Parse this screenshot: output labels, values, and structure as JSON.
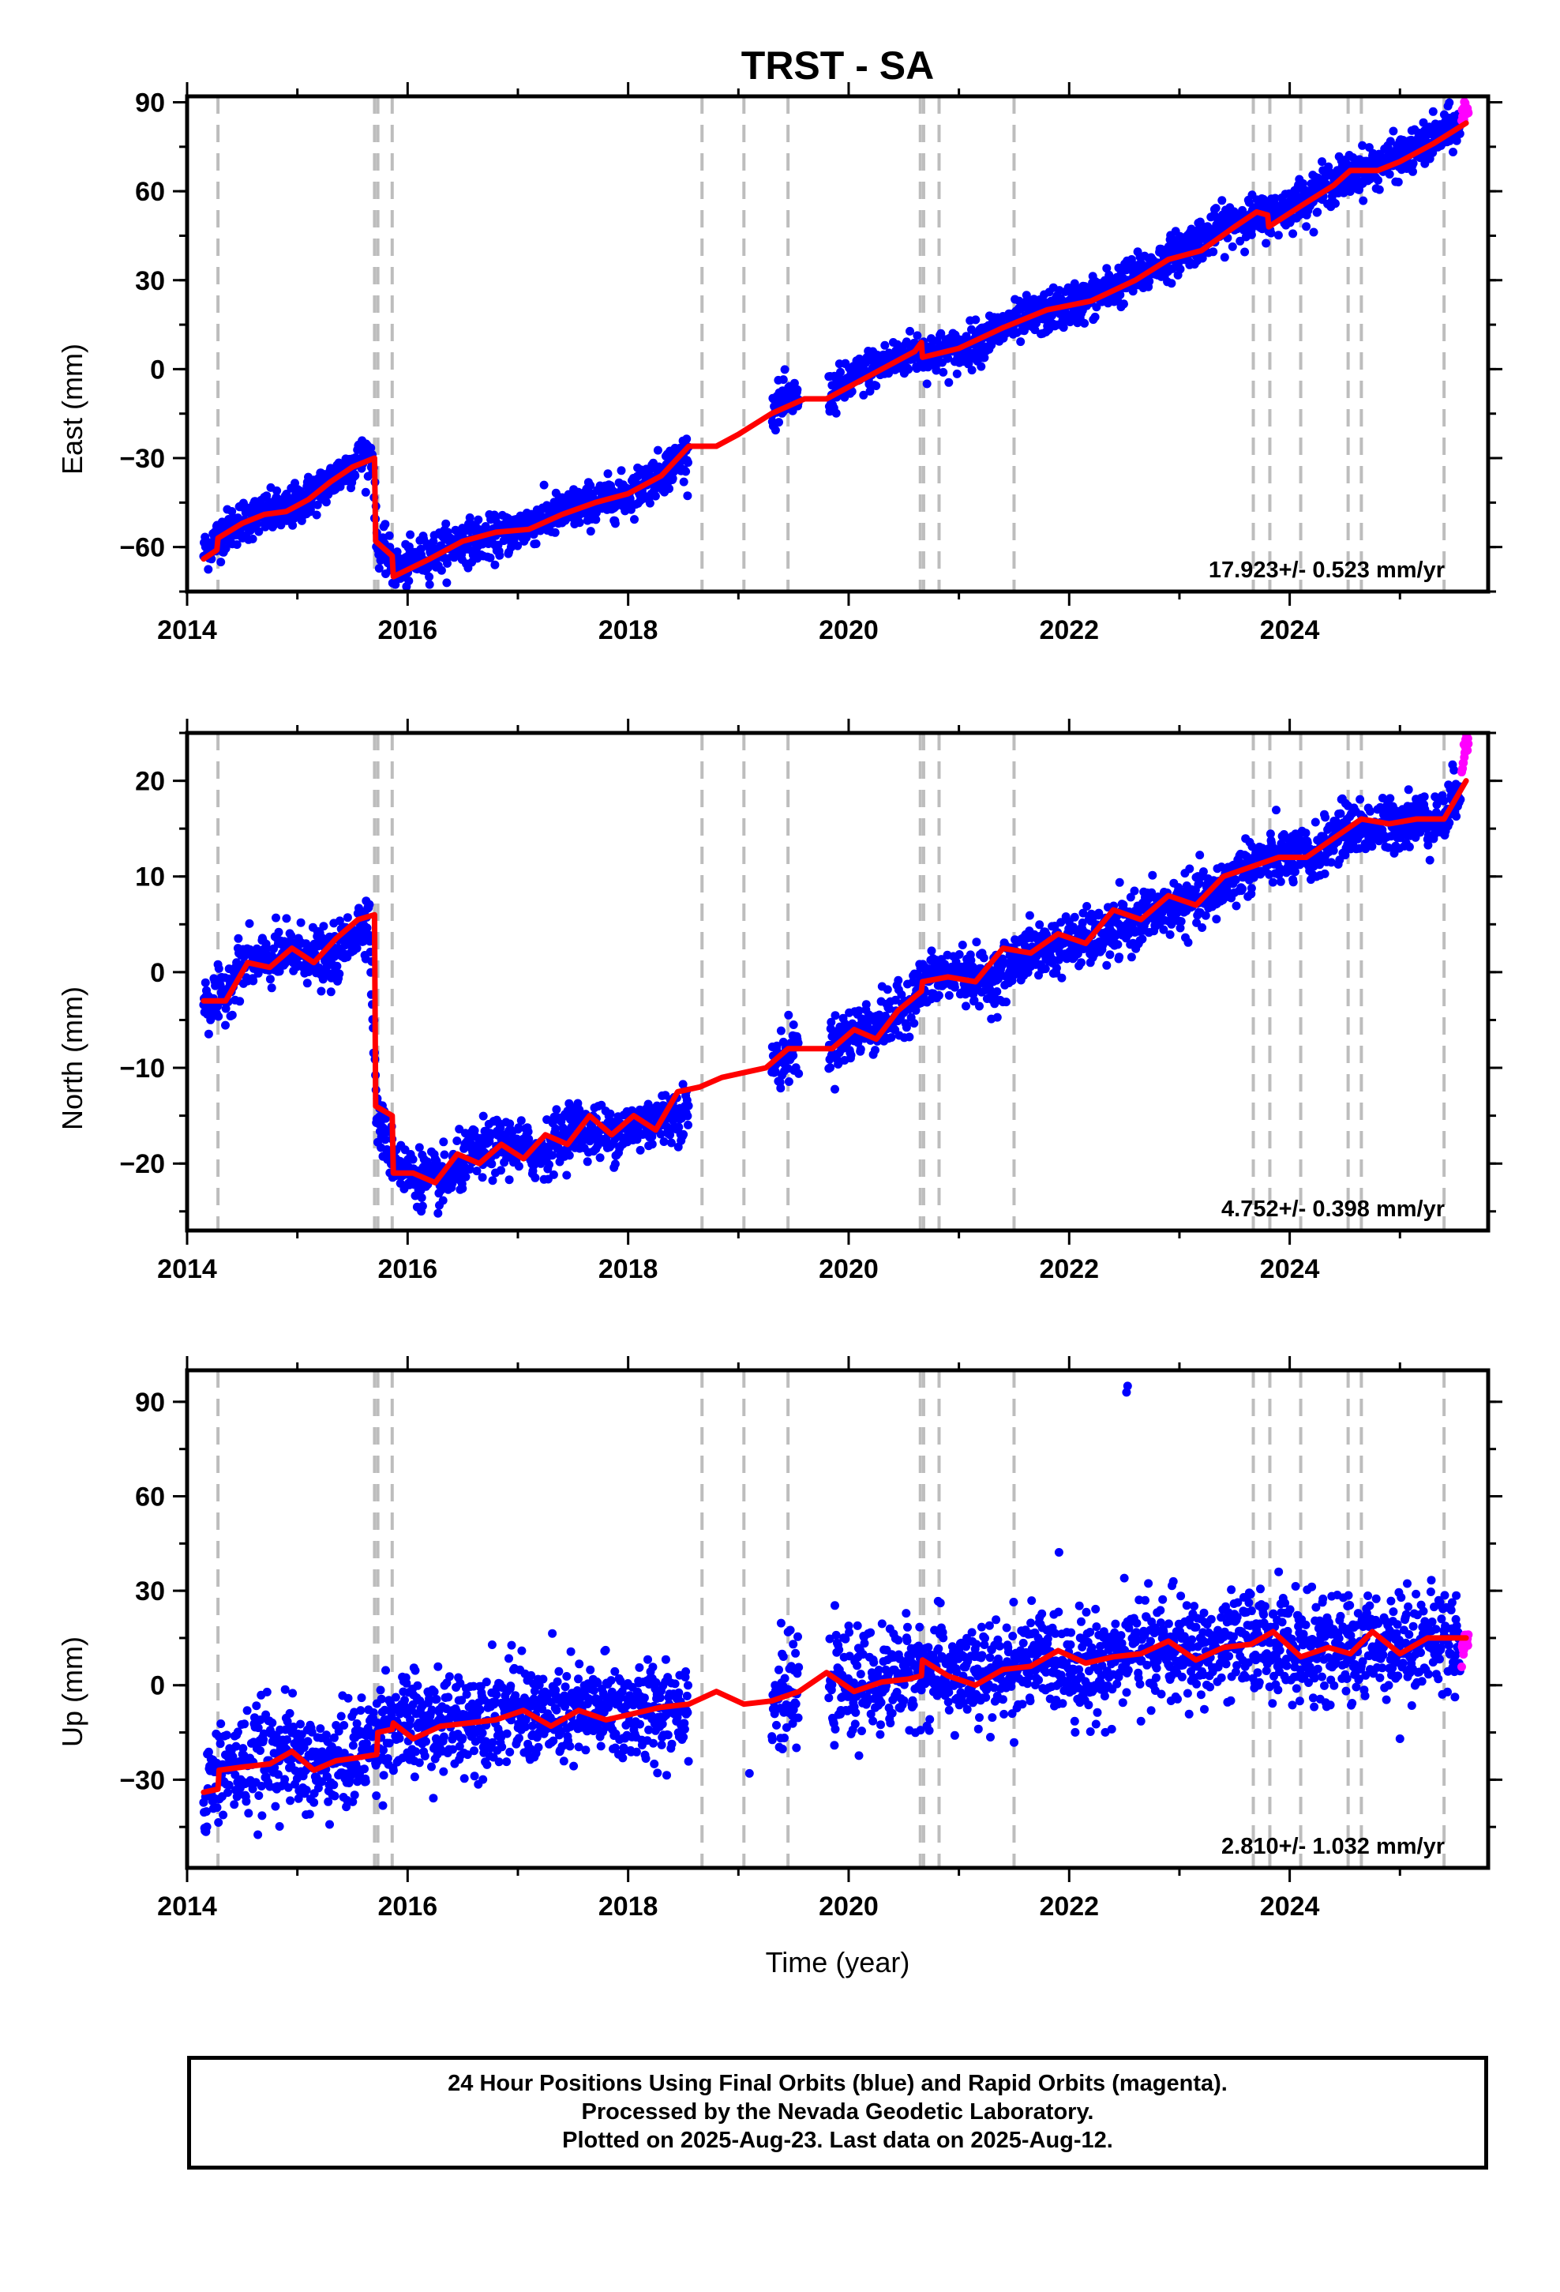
{
  "chart_data": [
    {
      "type": "scatter",
      "title": "TRST - SA",
      "ylabel": "East (mm)",
      "xlabel": "",
      "xlim": [
        2014.0,
        2025.8
      ],
      "ylim": [
        -75,
        92
      ],
      "xticks": [
        2014,
        2016,
        2018,
        2020,
        2022,
        2024
      ],
      "yticks": [
        -60,
        -30,
        0,
        30,
        60,
        90
      ],
      "ytick_labels": [
        "−60",
        "−30",
        "0",
        "30",
        "60",
        "90"
      ],
      "rate": "17.923+/- 0.523 mm/yr",
      "grid": false,
      "series": [
        {
          "color": "#0000ff",
          "marker": "dot",
          "x": [
            2014.15,
            2014.3,
            2014.5,
            2014.7,
            2014.9,
            2015.1,
            2015.3,
            2015.5,
            2015.68,
            2015.72,
            2015.8,
            2015.9,
            2016.1,
            2016.5,
            2016.8,
            2017.2,
            2017.6,
            2018.0,
            2018.3,
            2018.6,
            2019.3,
            2019.5,
            2019.8,
            2020.2,
            2020.6,
            2020.7,
            2021.0,
            2021.4,
            2021.8,
            2022.2,
            2022.7,
            2023.1,
            2023.5,
            2023.85,
            2024.1,
            2024.5,
            2024.9,
            2025.2,
            2025.5
          ],
          "y": [
            -62,
            -56,
            -51,
            -49,
            -48,
            -43,
            -38,
            -32,
            -28,
            -58,
            -62,
            -68,
            -64,
            -58,
            -57,
            -51,
            -46,
            -42,
            -35,
            -27,
            -13,
            -10,
            -9,
            0,
            6,
            5,
            6,
            14,
            19,
            24,
            33,
            42,
            50,
            52,
            57,
            65,
            70,
            75,
            82
          ],
          "scatter": 3.5
        },
        {
          "color": "#ff00ff",
          "marker": "dot",
          "x": [
            2025.56,
            2025.58,
            2025.6
          ],
          "y": [
            85,
            86.5,
            88
          ],
          "scatter": 2
        }
      ],
      "model": {
        "color": "#ff0000",
        "x": [
          2014.15,
          2014.27,
          2014.28,
          2014.5,
          2014.7,
          2014.9,
          2015.1,
          2015.3,
          2015.5,
          2015.7,
          2015.71,
          2015.86,
          2015.87,
          2016.2,
          2016.5,
          2016.8,
          2017.1,
          2017.4,
          2017.7,
          2018.0,
          2018.3,
          2018.55,
          2018.8,
          2019.0,
          2019.3,
          2019.6,
          2019.8,
          2020.2,
          2020.6,
          2020.66,
          2020.67,
          2021.0,
          2021.4,
          2021.8,
          2022.2,
          2022.6,
          2022.9,
          2023.2,
          2023.5,
          2023.7,
          2023.8,
          2023.81,
          2024.1,
          2024.4,
          2024.55,
          2024.8,
          2025.0,
          2025.3,
          2025.6
        ],
        "y": [
          -64,
          -61,
          -57,
          -52,
          -49,
          -48,
          -44,
          -38,
          -33,
          -30,
          -58,
          -63,
          -70,
          -64,
          -58,
          -55,
          -54,
          -49,
          -45,
          -42,
          -36,
          -26,
          -26,
          -22,
          -15,
          -10,
          -10,
          -2,
          6,
          9,
          4,
          7,
          14,
          20,
          23,
          30,
          37,
          40,
          48,
          53,
          52,
          48,
          55,
          62,
          67,
          67,
          70,
          76,
          83
        ]
      }
    },
    {
      "type": "scatter",
      "ylabel": "North (mm)",
      "xlabel": "",
      "xlim": [
        2014.0,
        2025.8
      ],
      "ylim": [
        -27,
        25
      ],
      "xticks": [
        2014,
        2016,
        2018,
        2020,
        2022,
        2024
      ],
      "yticks": [
        -20,
        -10,
        0,
        10,
        20
      ],
      "ytick_labels": [
        "−20",
        "−10",
        "0",
        "10",
        "20"
      ],
      "rate": "4.752+/- 0.398 mm/yr",
      "grid": false,
      "series": [
        {
          "color": "#0000ff",
          "marker": "dot",
          "x": [
            2014.15,
            2014.3,
            2014.5,
            2014.7,
            2014.9,
            2015.1,
            2015.3,
            2015.5,
            2015.65,
            2015.72,
            2015.85,
            2016.0,
            2016.3,
            2016.6,
            2016.9,
            2017.2,
            2017.5,
            2017.8,
            2018.1,
            2018.4,
            2019.3,
            2019.5,
            2019.8,
            2020.1,
            2020.4,
            2020.7,
            2021.0,
            2021.3,
            2021.6,
            2022.0,
            2022.4,
            2022.7,
            2023.0,
            2023.3,
            2023.6,
            2023.9,
            2024.2,
            2024.5,
            2024.8,
            2025.1,
            2025.4,
            2025.55
          ],
          "y": [
            -3,
            -3,
            1,
            1,
            2,
            2,
            1,
            4,
            6,
            -15,
            -19,
            -21,
            -22,
            -19,
            -18,
            -19,
            -16,
            -17,
            -16,
            -15,
            -10,
            -8,
            -8,
            -6,
            -5,
            -1,
            0,
            -1,
            2,
            3,
            4,
            6,
            7,
            8,
            11,
            12,
            12,
            15,
            15,
            16,
            16,
            20
          ],
          "scatter": 1.4
        },
        {
          "color": "#ff00ff",
          "marker": "dot",
          "x": [
            2025.56,
            2025.58,
            2025.6
          ],
          "y": [
            21,
            22.5,
            24
          ],
          "scatter": 0.6
        }
      ],
      "model": {
        "color": "#ff0000",
        "x": [
          2014.15,
          2014.35,
          2014.55,
          2014.75,
          2014.95,
          2015.15,
          2015.35,
          2015.55,
          2015.7,
          2015.71,
          2015.86,
          2015.87,
          2016.05,
          2016.25,
          2016.45,
          2016.65,
          2016.85,
          2017.05,
          2017.25,
          2017.45,
          2017.65,
          2017.85,
          2018.05,
          2018.25,
          2018.45,
          2018.65,
          2018.85,
          2019.05,
          2019.25,
          2019.45,
          2019.65,
          2019.85,
          2020.05,
          2020.25,
          2020.45,
          2020.66,
          2020.67,
          2020.9,
          2021.15,
          2021.4,
          2021.65,
          2021.9,
          2022.15,
          2022.4,
          2022.65,
          2022.9,
          2023.15,
          2023.4,
          2023.65,
          2023.9,
          2024.15,
          2024.4,
          2024.65,
          2024.9,
          2025.15,
          2025.4,
          2025.6
        ],
        "y": [
          -3,
          -3,
          1,
          0.5,
          2.5,
          1,
          3.5,
          5.5,
          6,
          -14,
          -15,
          -21,
          -21,
          -22,
          -19,
          -20,
          -18,
          -19.5,
          -17,
          -18,
          -15,
          -17,
          -15,
          -16.5,
          -12.5,
          -12,
          -11,
          -10.5,
          -10,
          -8,
          -8,
          -8,
          -6,
          -7,
          -4,
          -2,
          -1,
          -0.5,
          -1,
          2.5,
          2,
          4,
          3,
          6.5,
          5.5,
          8,
          7,
          10,
          11,
          12,
          12,
          14,
          16,
          15.5,
          16,
          16,
          20
        ]
      }
    },
    {
      "type": "scatter",
      "ylabel": "Up (mm)",
      "xlabel": "Time (year)",
      "xlim": [
        2014.0,
        2025.8
      ],
      "ylim": [
        -58,
        100
      ],
      "xticks": [
        2014,
        2016,
        2018,
        2020,
        2022,
        2024
      ],
      "yticks": [
        -30,
        0,
        30,
        60,
        90
      ],
      "ytick_labels": [
        "−30",
        "0",
        "30",
        "60",
        "90"
      ],
      "rate": "2.810+/- 1.032 mm/yr",
      "grid": false,
      "series": [
        {
          "color": "#0000ff",
          "marker": "dot",
          "x": [
            2014.15,
            2014.3,
            2014.5,
            2014.7,
            2014.9,
            2015.1,
            2015.3,
            2015.5,
            2015.7,
            2015.8,
            2016.0,
            2016.3,
            2016.6,
            2016.9,
            2017.2,
            2017.5,
            2017.8,
            2018.1,
            2018.4,
            2019.3,
            2019.5,
            2019.9,
            2020.2,
            2020.5,
            2020.75,
            2021.0,
            2021.3,
            2021.6,
            2021.9,
            2022.2,
            2022.5,
            2022.8,
            2023.1,
            2023.4,
            2023.7,
            2024.0,
            2024.3,
            2024.6,
            2024.9,
            2025.2,
            2025.5
          ],
          "y": [
            -33,
            -27,
            -26,
            -22,
            -21,
            -26,
            -25,
            -23,
            -17,
            -12,
            -13,
            -13,
            -10,
            -8,
            -10,
            -10,
            -7,
            -10,
            -6,
            -5,
            -3,
            0,
            0,
            4,
            5,
            3,
            2,
            8,
            8,
            5,
            10,
            12,
            10,
            11,
            15,
            12,
            10,
            12,
            14,
            14,
            15
          ],
          "scatter": 8
        },
        {
          "color": "#ff00ff",
          "marker": "dot",
          "x": [
            2025.56,
            2025.58,
            2025.6
          ],
          "y": [
            9,
            12,
            15
          ],
          "scatter": 2
        }
      ],
      "outliers": {
        "x": [
          2022.52,
          2022.53,
          2022.5,
          2023.9,
          2019.1,
          2025.0
        ],
        "y": [
          93,
          95,
          34,
          36,
          -28,
          -17
        ]
      },
      "model": {
        "color": "#ff0000",
        "x": [
          2014.15,
          2014.28,
          2014.29,
          2014.5,
          2014.75,
          2014.95,
          2015.15,
          2015.35,
          2015.55,
          2015.72,
          2015.73,
          2015.86,
          2015.87,
          2016.05,
          2016.3,
          2016.55,
          2016.8,
          2017.05,
          2017.3,
          2017.55,
          2017.8,
          2018.05,
          2018.3,
          2018.55,
          2018.8,
          2019.05,
          2019.3,
          2019.55,
          2019.8,
          2020.05,
          2020.3,
          2020.55,
          2020.66,
          2020.67,
          2020.9,
          2021.15,
          2021.4,
          2021.65,
          2021.9,
          2022.15,
          2022.4,
          2022.65,
          2022.9,
          2023.15,
          2023.4,
          2023.65,
          2023.85,
          2024.1,
          2024.35,
          2024.55,
          2024.75,
          2025.0,
          2025.25,
          2025.6
        ],
        "y": [
          -34,
          -33,
          -27,
          -26,
          -25,
          -21,
          -27,
          -24,
          -23,
          -22,
          -15,
          -14,
          -12,
          -17,
          -13,
          -12,
          -11,
          -8,
          -13,
          -8,
          -11,
          -9,
          -7,
          -6,
          -2,
          -6,
          -5,
          -2,
          4,
          -2,
          1,
          2,
          3,
          8,
          3,
          0,
          5,
          6,
          11,
          7,
          9,
          10,
          14,
          8,
          12,
          13,
          17,
          9,
          12,
          10,
          17,
          10,
          15,
          15
        ]
      }
    }
  ],
  "event_lines": [
    2014.28,
    2015.7,
    2015.73,
    2015.86,
    2018.67,
    2019.05,
    2019.45,
    2020.65,
    2020.68,
    2020.82,
    2021.5,
    2023.67,
    2023.82,
    2024.1,
    2024.53,
    2024.65,
    2025.4
  ],
  "colors": {
    "final_orbits": "#0000ff",
    "rapid_orbits": "#ff00ff",
    "model": "#ff0000",
    "event_lines": "#bdbdbd"
  },
  "footer": {
    "line1": "24 Hour Positions Using Final Orbits (blue) and Rapid Orbits (magenta).",
    "line2": "Processed by the Nevada Geodetic Laboratory.",
    "line3": "Plotted on 2025-Aug-23. Last data on 2025-Aug-12."
  }
}
